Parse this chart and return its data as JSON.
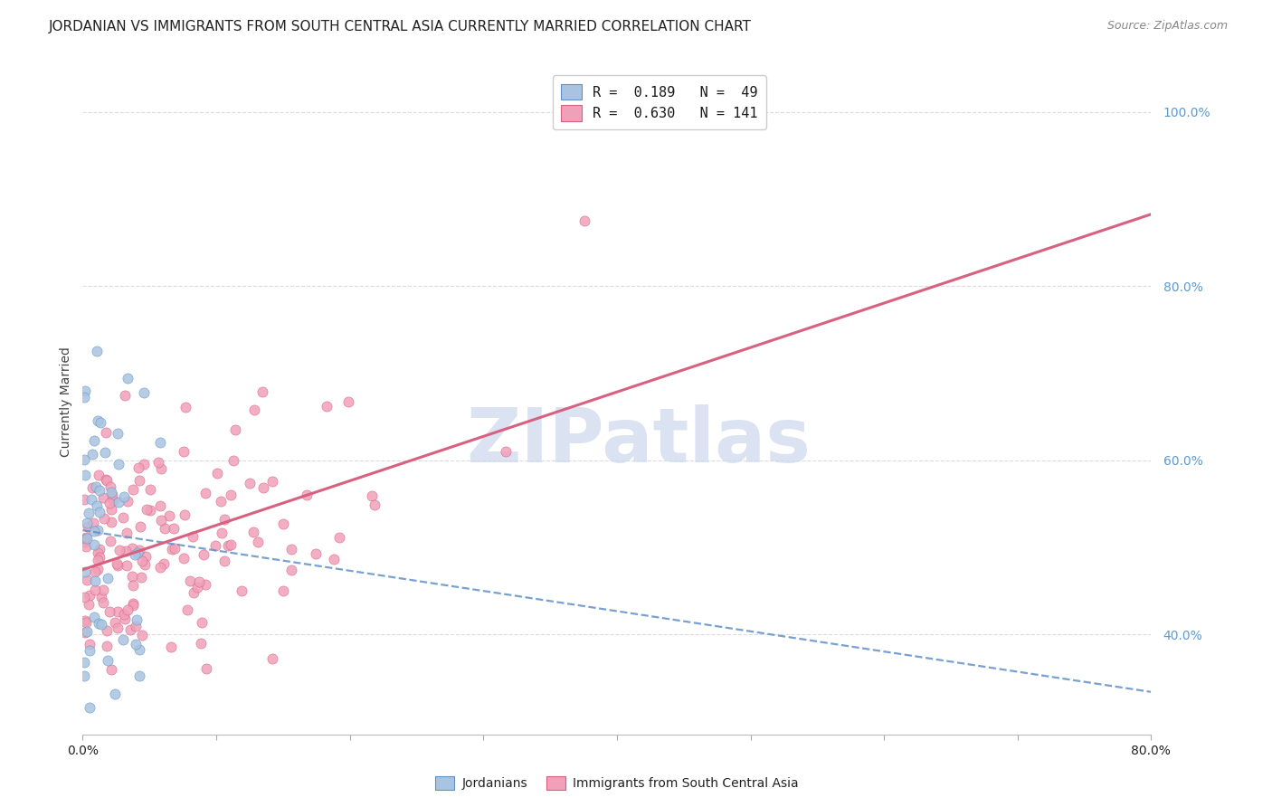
{
  "title": "JORDANIAN VS IMMIGRANTS FROM SOUTH CENTRAL ASIA CURRENTLY MARRIED CORRELATION CHART",
  "source": "Source: ZipAtlas.com",
  "ylabel": "Currently Married",
  "xlim": [
    0.0,
    0.8
  ],
  "ylim": [
    0.285,
    1.05
  ],
  "yticks": [
    0.4,
    0.6,
    0.8,
    1.0
  ],
  "ytick_labels": [
    "40.0%",
    "60.0%",
    "80.0%",
    "100.0%"
  ],
  "xtick_left_label": "0.0%",
  "xtick_right_label": "80.0%",
  "legend_r1": "R =  0.189   N =  49",
  "legend_r2": "R =  0.630   N = 141",
  "legend_color1": "#a8c4e0",
  "legend_color2": "#f0a0b8",
  "scatter_color1": "#a8c4e0",
  "scatter_edge1": "#6090c8",
  "scatter_color2": "#f0a0b8",
  "scatter_edge2": "#d86080",
  "line_color1": "#6090c8",
  "line_color2": "#d86080",
  "background_color": "#ffffff",
  "grid_color": "#d8d8d8",
  "title_color": "#222222",
  "source_color": "#888888",
  "ytick_color": "#5b9bd5",
  "xtick_color": "#222222",
  "watermark": "ZIPatlas",
  "watermark_color": "#ccd8ee",
  "title_fontsize": 11,
  "tick_fontsize": 10,
  "ylabel_fontsize": 10,
  "seed": 12345,
  "n_jord": 49,
  "n_immig": 141,
  "r_jord": 0.189,
  "r_immig": 0.63
}
